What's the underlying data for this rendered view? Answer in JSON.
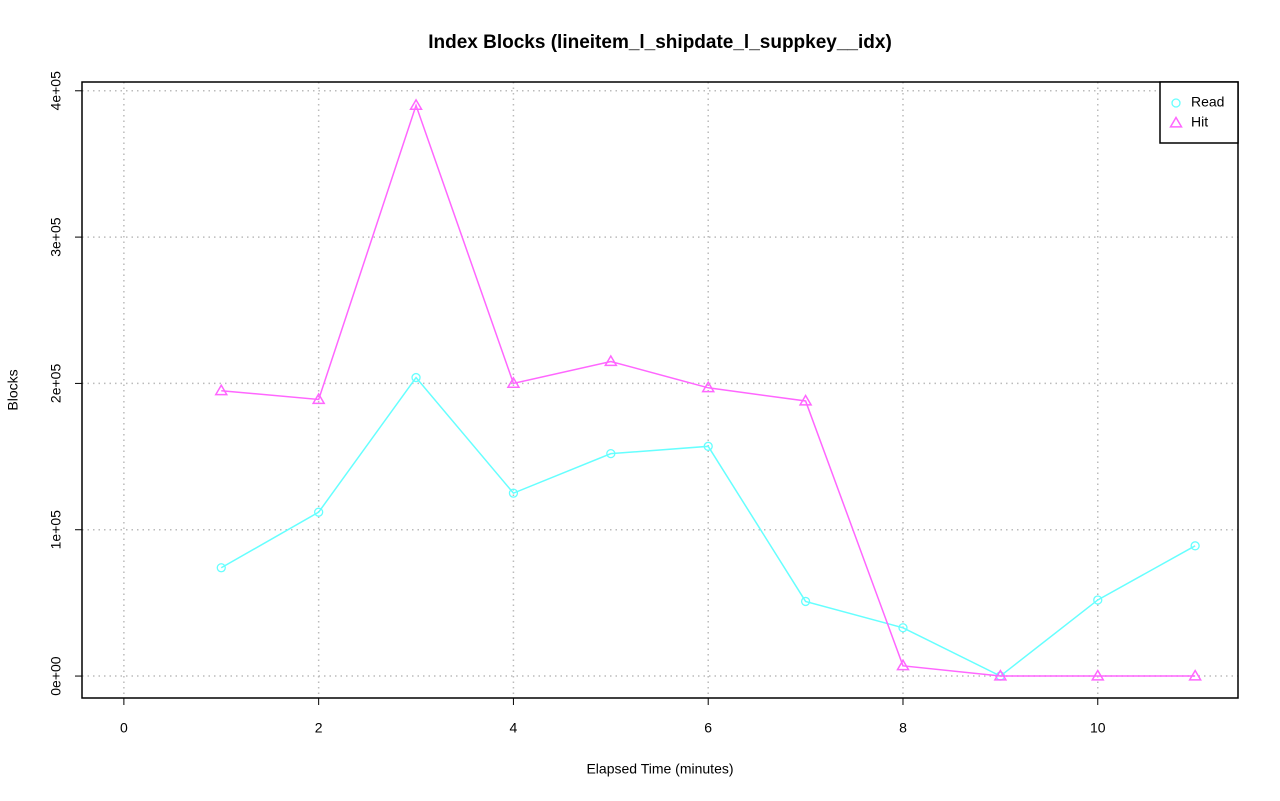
{
  "chart_data": {
    "type": "line",
    "title": "Index Blocks (lineitem_l_shipdate_l_suppkey__idx)",
    "xlabel": "Elapsed Time (minutes)",
    "ylabel": "Blocks",
    "x": [
      1,
      2,
      3,
      4,
      5,
      6,
      7,
      8,
      9,
      10,
      11
    ],
    "series": [
      {
        "name": "Read",
        "color": "#66ffff",
        "marker": "circle",
        "values": [
          74000,
          112000,
          204000,
          125000,
          152000,
          157000,
          51000,
          33000,
          0,
          52000,
          89000
        ]
      },
      {
        "name": "Hit",
        "color": "#ff66ff",
        "marker": "triangle",
        "values": [
          195000,
          189000,
          390000,
          200000,
          215000,
          197000,
          188000,
          7000,
          0,
          0,
          0
        ]
      }
    ],
    "xlim": [
      -0.43,
      11.44
    ],
    "ylim": [
      -15000,
      406000
    ],
    "xticks": [
      0,
      2,
      4,
      6,
      8,
      10
    ],
    "yticks": [
      {
        "value": 0,
        "label": "0e+00"
      },
      {
        "value": 100000,
        "label": "1e+05"
      },
      {
        "value": 200000,
        "label": "2e+05"
      },
      {
        "value": 300000,
        "label": "3e+05"
      },
      {
        "value": 400000,
        "label": "4e+05"
      }
    ],
    "grid": true,
    "legend": "topright"
  }
}
